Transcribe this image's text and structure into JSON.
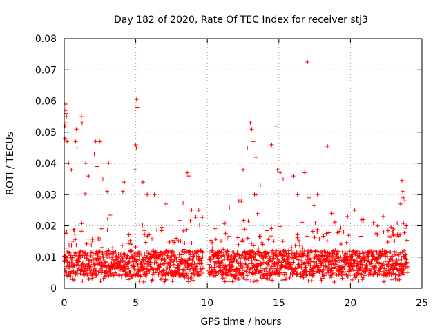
{
  "chart_data": {
    "type": "scatter",
    "title": "Day 182 of 2020, Rate Of TEC Index for receiver stj3",
    "xlabel": "GPS time / hours",
    "ylabel": "ROTI / TECUs",
    "xlim": [
      0,
      25
    ],
    "ylim": [
      0,
      0.08
    ],
    "grid": true,
    "x_ticks": [
      {
        "value": 0,
        "label": "0"
      },
      {
        "value": 5,
        "label": "5"
      },
      {
        "value": 10,
        "label": "10"
      },
      {
        "value": 15,
        "label": "15"
      },
      {
        "value": 20,
        "label": "20"
      },
      {
        "value": 25,
        "label": "25"
      }
    ],
    "y_ticks": [
      {
        "value": 0,
        "label": "0"
      },
      {
        "value": 0.01,
        "label": "0.01"
      },
      {
        "value": 0.02,
        "label": "0.02"
      },
      {
        "value": 0.03,
        "label": "0.03"
      },
      {
        "value": 0.04,
        "label": "0.04"
      },
      {
        "value": 0.05,
        "label": "0.05"
      },
      {
        "value": 0.06,
        "label": "0.06"
      },
      {
        "value": 0.07,
        "label": "0.07"
      },
      {
        "value": 0.08,
        "label": "0.08"
      }
    ],
    "series": [
      {
        "name": "ROTI",
        "marker": "plus",
        "color": "#ff0000",
        "coverage": {
          "x_range": [
            0,
            24
          ],
          "gap": [
            9.7,
            10.1
          ],
          "typical_range": [
            0.004,
            0.012
          ]
        },
        "points": [
          [
            0.05,
            0.052
          ],
          [
            0.1,
            0.059
          ],
          [
            0.1,
            0.057
          ],
          [
            0.12,
            0.056
          ],
          [
            0.15,
            0.055
          ],
          [
            0.12,
            0.053
          ],
          [
            0.2,
            0.047
          ],
          [
            0.05,
            0.048
          ],
          [
            0.3,
            0.04
          ],
          [
            0.5,
            0.038
          ],
          [
            0.8,
            0.047
          ],
          [
            0.9,
            0.045
          ],
          [
            1.2,
            0.055
          ],
          [
            1.25,
            0.053
          ],
          [
            0.85,
            0.051
          ],
          [
            1.5,
            0.04
          ],
          [
            1.7,
            0.036
          ],
          [
            2.1,
            0.043
          ],
          [
            2.2,
            0.047
          ],
          [
            2.5,
            0.047
          ],
          [
            2.3,
            0.039
          ],
          [
            2.7,
            0.035
          ],
          [
            3.0,
            0.031
          ],
          [
            3.1,
            0.04
          ],
          [
            4.1,
            0.031
          ],
          [
            4.2,
            0.034
          ],
          [
            4.8,
            0.033
          ],
          [
            5.05,
            0.0605
          ],
          [
            5.1,
            0.058
          ],
          [
            5.0,
            0.046
          ],
          [
            5.05,
            0.045
          ],
          [
            4.95,
            0.038
          ],
          [
            5.5,
            0.034
          ],
          [
            5.8,
            0.03
          ],
          [
            6.3,
            0.03
          ],
          [
            7.1,
            0.027
          ],
          [
            8.6,
            0.037
          ],
          [
            8.7,
            0.036
          ],
          [
            8.9,
            0.025
          ],
          [
            9.4,
            0.025
          ],
          [
            12.2,
            0.028
          ],
          [
            12.5,
            0.038
          ],
          [
            12.8,
            0.045
          ],
          [
            13.0,
            0.053
          ],
          [
            13.1,
            0.051
          ],
          [
            13.2,
            0.047
          ],
          [
            13.4,
            0.042
          ],
          [
            13.3,
            0.03
          ],
          [
            13.7,
            0.033
          ],
          [
            14.5,
            0.046
          ],
          [
            14.6,
            0.045
          ],
          [
            14.8,
            0.052
          ],
          [
            14.9,
            0.038
          ],
          [
            15.1,
            0.037
          ],
          [
            15.3,
            0.035
          ],
          [
            16.0,
            0.036
          ],
          [
            16.3,
            0.03
          ],
          [
            16.8,
            0.037
          ],
          [
            17.0,
            0.0725
          ],
          [
            17.1,
            0.029
          ],
          [
            18.4,
            0.0455
          ],
          [
            17.7,
            0.03
          ],
          [
            18.7,
            0.024
          ],
          [
            19.8,
            0.023
          ],
          [
            20.3,
            0.025
          ],
          [
            20.9,
            0.022
          ],
          [
            21.6,
            0.021
          ],
          [
            22.3,
            0.023
          ],
          [
            23.0,
            0.019
          ],
          [
            23.5,
            0.027
          ],
          [
            23.6,
            0.0345
          ],
          [
            23.65,
            0.031
          ],
          [
            23.7,
            0.029
          ],
          [
            23.8,
            0.028
          ],
          [
            23.9,
            0.02
          ]
        ]
      }
    ]
  }
}
